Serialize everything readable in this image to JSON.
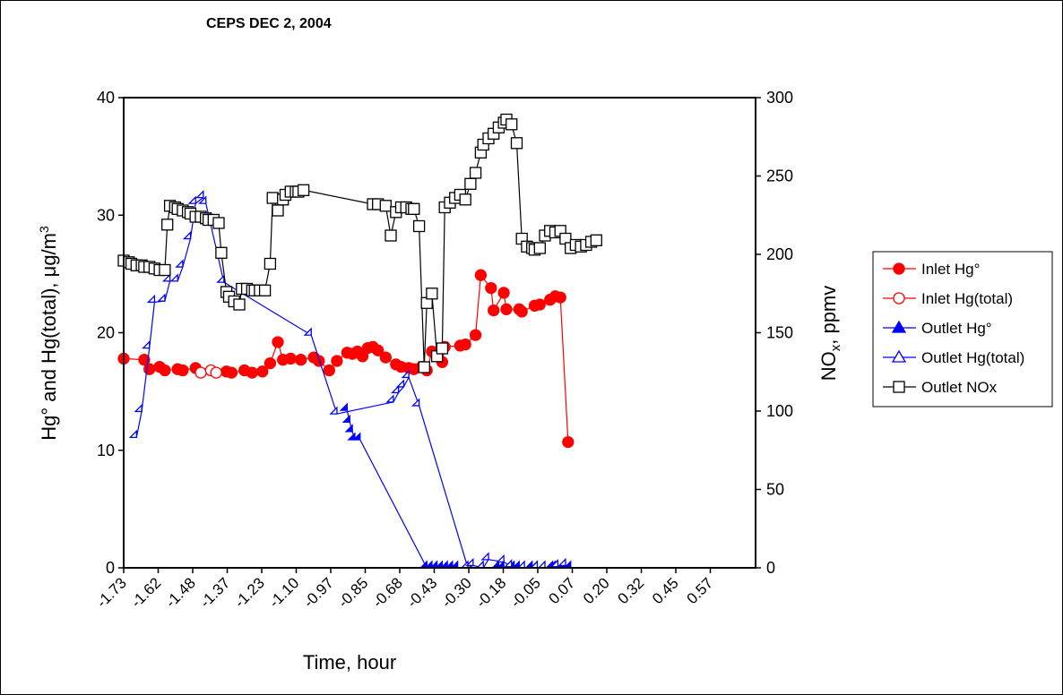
{
  "chart_data": {
    "type": "line",
    "title": "CEPS DEC 2, 2004",
    "xlabel": "Time, hour",
    "ylabel_left": "Hg° and Hg(total), μg/m³",
    "ylabel_left_main": "Hg° and Hg(total), μg/m",
    "ylabel_left_sup": "3",
    "ylabel_right": "NOₓ, ppmv",
    "ylabel_right_main": "NO",
    "ylabel_right_sub": "x",
    "ylabel_right_tail": ", ppmv",
    "x_tick_labels": [
      "-1.73",
      "-1.62",
      "-1.48",
      "-1.37",
      "-1.23",
      "-1.10",
      "-0.97",
      "-0.85",
      "-0.68",
      "-0.43",
      "-0.30",
      "-0.18",
      "-0.05",
      "0.07",
      "0.20",
      "0.32",
      "0.45",
      "0.57"
    ],
    "xlim": [
      -1.73,
      0.73
    ],
    "ylim_left": [
      0,
      40
    ],
    "ylim_right": [
      0,
      300
    ],
    "y_ticks_left": [
      0,
      10,
      20,
      30,
      40
    ],
    "y_ticks_right": [
      0,
      50,
      100,
      150,
      200,
      250,
      300
    ],
    "grid": false,
    "legend_position": "right",
    "series": [
      {
        "name": "Inlet Hg°",
        "axis": "left",
        "color": "#ff0000",
        "marker": "circle-filled",
        "points": [
          [
            -1.73,
            17.8
          ],
          [
            -1.65,
            17.7
          ],
          [
            -1.63,
            16.9
          ],
          [
            -1.59,
            17.1
          ],
          [
            -1.57,
            16.8
          ],
          [
            -1.52,
            16.9
          ],
          [
            -1.5,
            16.8
          ],
          [
            -1.45,
            17.0
          ],
          [
            -1.33,
            16.7
          ],
          [
            -1.31,
            16.6
          ],
          [
            -1.26,
            16.8
          ],
          [
            -1.23,
            16.6
          ],
          [
            -1.19,
            16.7
          ],
          [
            -1.16,
            17.4
          ],
          [
            -1.13,
            19.2
          ],
          [
            -1.11,
            17.7
          ],
          [
            -1.08,
            17.8
          ],
          [
            -1.04,
            17.7
          ],
          [
            -0.99,
            17.9
          ],
          [
            -0.97,
            17.6
          ],
          [
            -0.93,
            16.8
          ],
          [
            -0.9,
            17.6
          ],
          [
            -0.86,
            18.3
          ],
          [
            -0.84,
            18.2
          ],
          [
            -0.82,
            18.4
          ],
          [
            -0.8,
            18.0
          ],
          [
            -0.78,
            18.7
          ],
          [
            -0.76,
            18.8
          ],
          [
            -0.74,
            18.5
          ],
          [
            -0.71,
            17.9
          ],
          [
            -0.67,
            17.3
          ],
          [
            -0.65,
            17.1
          ],
          [
            -0.62,
            17.0
          ],
          [
            -0.6,
            16.9
          ],
          [
            -0.57,
            17.1
          ],
          [
            -0.55,
            16.8
          ],
          [
            -0.53,
            18.4
          ],
          [
            -0.49,
            17.5
          ],
          [
            -0.48,
            18.8
          ],
          [
            -0.42,
            18.9
          ],
          [
            -0.4,
            19.0
          ],
          [
            -0.36,
            19.8
          ],
          [
            -0.34,
            24.9
          ],
          [
            -0.3,
            23.8
          ],
          [
            -0.29,
            21.9
          ],
          [
            -0.25,
            23.4
          ],
          [
            -0.24,
            22.0
          ],
          [
            -0.19,
            22.0
          ],
          [
            -0.18,
            21.8
          ],
          [
            -0.13,
            22.3
          ],
          [
            -0.11,
            22.4
          ],
          [
            -0.07,
            22.8
          ],
          [
            -0.05,
            23.1
          ],
          [
            -0.03,
            23.0
          ],
          [
            0.0,
            10.7
          ]
        ]
      },
      {
        "name": "Inlet Hg(total)",
        "axis": "left",
        "color": "#ff0000",
        "marker": "circle-open",
        "points": [
          [
            -1.43,
            16.6
          ],
          [
            -1.39,
            16.8
          ],
          [
            -1.37,
            16.6
          ]
        ]
      },
      {
        "name": "Outlet Hg°",
        "axis": "left",
        "color": "#0000ff",
        "marker": "triangle-filled",
        "points": [
          [
            -0.86,
            13.4
          ],
          [
            -0.85,
            12.4
          ],
          [
            -0.84,
            11.6
          ],
          [
            -0.83,
            10.9
          ],
          [
            -0.81,
            10.9
          ],
          [
            -0.55,
            0
          ],
          [
            -0.53,
            0
          ],
          [
            -0.51,
            0
          ],
          [
            -0.49,
            0
          ],
          [
            -0.47,
            0
          ],
          [
            -0.45,
            0
          ],
          [
            -0.43,
            0
          ],
          [
            -0.27,
            0
          ],
          [
            -0.25,
            0
          ],
          [
            -0.21,
            0
          ],
          [
            -0.19,
            0
          ],
          [
            -0.14,
            0
          ],
          [
            -0.12,
            0
          ],
          [
            -0.06,
            0
          ],
          [
            -0.04,
            0
          ],
          [
            -0.01,
            0
          ],
          [
            0.01,
            0
          ]
        ]
      },
      {
        "name": "Outlet Hg(total)",
        "axis": "left",
        "color": "#0000ff",
        "marker": "triangle-open",
        "points": [
          [
            -1.68,
            11.1
          ],
          [
            -1.66,
            13.3
          ],
          [
            -1.63,
            18.7
          ],
          [
            -1.61,
            22.6
          ],
          [
            -1.57,
            22.7
          ],
          [
            -1.55,
            24.4
          ],
          [
            -1.52,
            24.4
          ],
          [
            -1.5,
            25.6
          ],
          [
            -1.47,
            28.0
          ],
          [
            -1.45,
            31.0
          ],
          [
            -1.42,
            31.5
          ],
          [
            -1.41,
            31.0
          ],
          [
            -1.34,
            24.3
          ],
          [
            -1.0,
            19.8
          ],
          [
            -0.9,
            13.1
          ],
          [
            -0.68,
            14.1
          ],
          [
            -0.66,
            14.9
          ],
          [
            -0.64,
            15.4
          ],
          [
            -0.62,
            16.2
          ],
          [
            -0.58,
            13.8
          ],
          [
            -0.39,
            0
          ],
          [
            -0.37,
            0.2
          ],
          [
            -0.33,
            0
          ],
          [
            -0.31,
            0.7
          ],
          [
            -0.25,
            0.5
          ],
          [
            -0.22,
            0.1
          ],
          [
            -0.17,
            0
          ],
          [
            -0.12,
            0
          ],
          [
            -0.09,
            0
          ],
          [
            -0.05,
            0
          ],
          [
            -0.04,
            0.1
          ],
          [
            -0.01,
            0.2
          ]
        ]
      },
      {
        "name": "Outlet NOx",
        "axis": "right",
        "color": "#000000",
        "marker": "square-open",
        "points": [
          [
            -1.73,
            196
          ],
          [
            -1.71,
            195
          ],
          [
            -1.7,
            194
          ],
          [
            -1.68,
            193
          ],
          [
            -1.66,
            193
          ],
          [
            -1.65,
            192
          ],
          [
            -1.63,
            192
          ],
          [
            -1.61,
            191
          ],
          [
            -1.59,
            190
          ],
          [
            -1.57,
            190
          ],
          [
            -1.56,
            219
          ],
          [
            -1.55,
            231
          ],
          [
            -1.53,
            230
          ],
          [
            -1.52,
            229
          ],
          [
            -1.5,
            228
          ],
          [
            -1.48,
            227
          ],
          [
            -1.47,
            226
          ],
          [
            -1.45,
            224
          ],
          [
            -1.43,
            224
          ],
          [
            -1.41,
            223
          ],
          [
            -1.4,
            222
          ],
          [
            -1.38,
            222
          ],
          [
            -1.36,
            220
          ],
          [
            -1.35,
            201
          ],
          [
            -1.33,
            176
          ],
          [
            -1.32,
            173
          ],
          [
            -1.3,
            170
          ],
          [
            -1.28,
            168
          ],
          [
            -1.27,
            178
          ],
          [
            -1.25,
            178
          ],
          [
            -1.23,
            177
          ],
          [
            -1.22,
            177
          ],
          [
            -1.2,
            177
          ],
          [
            -1.18,
            177
          ],
          [
            -1.16,
            194
          ],
          [
            -1.15,
            236
          ],
          [
            -1.13,
            228
          ],
          [
            -1.11,
            235
          ],
          [
            -1.1,
            238
          ],
          [
            -1.08,
            240
          ],
          [
            -1.06,
            240
          ],
          [
            -1.05,
            240
          ],
          [
            -1.03,
            241
          ],
          [
            -0.76,
            232
          ],
          [
            -0.74,
            232
          ],
          [
            -0.71,
            231
          ],
          [
            -0.69,
            212
          ],
          [
            -0.67,
            227
          ],
          [
            -0.65,
            230
          ],
          [
            -0.63,
            230
          ],
          [
            -0.61,
            229
          ],
          [
            -0.6,
            229
          ],
          [
            -0.58,
            218
          ],
          [
            -0.56,
            128
          ],
          [
            -0.55,
            169
          ],
          [
            -0.53,
            175
          ],
          [
            -0.51,
            135
          ],
          [
            -0.49,
            140
          ],
          [
            -0.48,
            230
          ],
          [
            -0.46,
            233
          ],
          [
            -0.44,
            236
          ],
          [
            -0.42,
            238
          ],
          [
            -0.4,
            235
          ],
          [
            -0.38,
            245
          ],
          [
            -0.36,
            252
          ],
          [
            -0.34,
            265
          ],
          [
            -0.33,
            270
          ],
          [
            -0.31,
            274
          ],
          [
            -0.29,
            277
          ],
          [
            -0.27,
            281
          ],
          [
            -0.25,
            284
          ],
          [
            -0.24,
            286
          ],
          [
            -0.22,
            283
          ],
          [
            -0.2,
            271
          ],
          [
            -0.18,
            210
          ],
          [
            -0.16,
            205
          ],
          [
            -0.14,
            204
          ],
          [
            -0.13,
            203
          ],
          [
            -0.11,
            204
          ],
          [
            -0.09,
            212
          ],
          [
            -0.07,
            215
          ],
          [
            -0.05,
            214
          ],
          [
            -0.03,
            215
          ],
          [
            -0.01,
            210
          ],
          [
            0.01,
            204
          ],
          [
            0.03,
            206
          ],
          [
            0.05,
            205
          ],
          [
            0.07,
            206
          ],
          [
            0.09,
            208
          ],
          [
            0.11,
            209
          ]
        ]
      }
    ]
  },
  "legend": {
    "items": [
      {
        "name": "Inlet Hg°",
        "color": "#ff0000",
        "marker": "circle-filled"
      },
      {
        "name": "Inlet Hg(total)",
        "color": "#ff0000",
        "marker": "circle-open"
      },
      {
        "name": "Outlet Hg°",
        "color": "#0000ff",
        "marker": "triangle-filled"
      },
      {
        "name": "Outlet Hg(total)",
        "color": "#0000ff",
        "marker": "triangle-open"
      },
      {
        "name": "Outlet NOx",
        "color": "#000000",
        "marker": "square-open"
      }
    ]
  }
}
